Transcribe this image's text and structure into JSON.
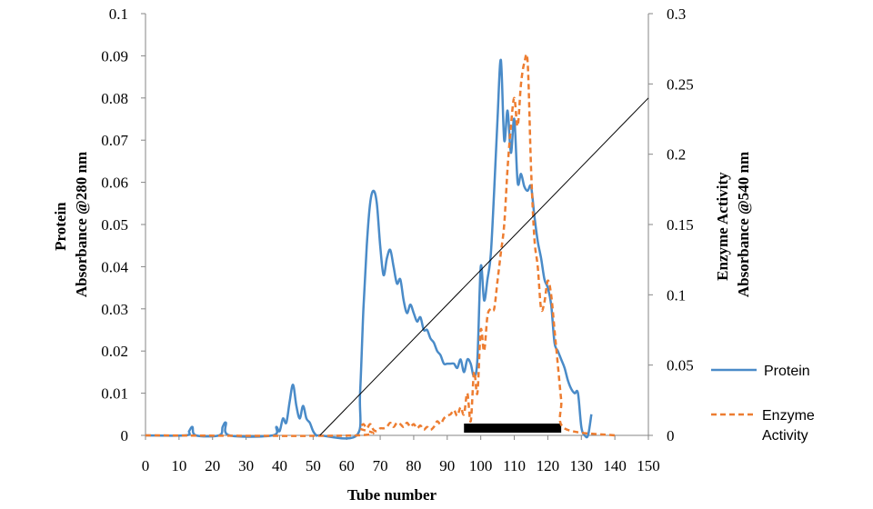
{
  "chart_data": {
    "type": "line",
    "title": "",
    "xlabel": "Tube number",
    "ylabel": [
      "Protein",
      "Absorbance @280 nm"
    ],
    "y2label": [
      "Enzyme Activity",
      "Absorbance @540 nm"
    ],
    "xlim": [
      0,
      150
    ],
    "ylim": [
      0,
      0.1
    ],
    "y2lim": [
      0,
      0.3
    ],
    "x_ticks": [
      0,
      10,
      20,
      30,
      40,
      50,
      60,
      70,
      80,
      90,
      100,
      110,
      120,
      130,
      140,
      150
    ],
    "y_ticks": [
      "0",
      "0.01",
      "0.02",
      "0.03",
      "0.04",
      "0.05",
      "0.06",
      "0.07",
      "0.08",
      "0.09",
      "0.1"
    ],
    "y2_ticks": [
      "0",
      "0.05",
      "0.1",
      "0.15",
      "0.2",
      "0.25",
      "0.3"
    ],
    "grid": false,
    "legend_position": "right",
    "series": [
      {
        "name": "Protein",
        "axis": "left",
        "color": "#4A8BC8",
        "style": "solid",
        "x": [
          0,
          12,
          13,
          14,
          15,
          22,
          23,
          24,
          25,
          38,
          39,
          40,
          41,
          42,
          43,
          44,
          45,
          46,
          47,
          48,
          49,
          50,
          51,
          52,
          63,
          64,
          65,
          66,
          67,
          68,
          69,
          70,
          71,
          72,
          73,
          74,
          75,
          76,
          77,
          78,
          79,
          80,
          81,
          82,
          83,
          84,
          85,
          86,
          87,
          88,
          89,
          90,
          91,
          92,
          93,
          94,
          95,
          96,
          97,
          98,
          99,
          100,
          101,
          102,
          103,
          104,
          105,
          106,
          107,
          108,
          109,
          110,
          111,
          112,
          113,
          114,
          115,
          116,
          117,
          118,
          119,
          120,
          121,
          122,
          123,
          124,
          125,
          126,
          127,
          128,
          129,
          130,
          131,
          132,
          133
        ],
        "y": [
          0,
          0,
          0.001,
          0.002,
          0,
          0,
          0.002,
          0.003,
          0,
          0,
          0.002,
          0.001,
          0.004,
          0.003,
          0.008,
          0.012,
          0.007,
          0.004,
          0.007,
          0.004,
          0.003,
          0.001,
          0,
          0,
          0,
          0.01,
          0.03,
          0.045,
          0.055,
          0.058,
          0.055,
          0.045,
          0.038,
          0.042,
          0.044,
          0.04,
          0.036,
          0.037,
          0.032,
          0.029,
          0.031,
          0.029,
          0.027,
          0.028,
          0.025,
          0.025,
          0.023,
          0.022,
          0.02,
          0.019,
          0.017,
          0.017,
          0.017,
          0.017,
          0.016,
          0.018,
          0.015,
          0.018,
          0.017,
          0.014,
          0.018,
          0.04,
          0.032,
          0.037,
          0.043,
          0.058,
          0.075,
          0.089,
          0.07,
          0.077,
          0.067,
          0.075,
          0.06,
          0.062,
          0.059,
          0.058,
          0.059,
          0.052,
          0.046,
          0.042,
          0.037,
          0.035,
          0.031,
          0.022,
          0.02,
          0.018,
          0.016,
          0.013,
          0.011,
          0.01,
          0.01,
          0.002,
          0,
          0,
          0.005
        ]
      },
      {
        "name": "Enzyme Activity",
        "axis": "right",
        "color": "#ED7D31",
        "style": "dashed",
        "x": [
          0,
          63,
          64,
          65,
          66,
          67,
          68,
          69,
          70,
          71,
          72,
          73,
          74,
          75,
          76,
          77,
          78,
          79,
          80,
          81,
          82,
          83,
          84,
          85,
          86,
          87,
          88,
          89,
          90,
          91,
          92,
          93,
          94,
          95,
          96,
          97,
          98,
          99,
          100,
          101,
          102,
          103,
          104,
          105,
          106,
          107,
          108,
          109,
          110,
          111,
          112,
          113,
          114,
          115,
          116,
          117,
          118,
          119,
          120,
          121,
          122,
          123,
          124,
          125,
          140
        ],
        "y": [
          0,
          0,
          0.005,
          0.008,
          0.005,
          0.008,
          0.004,
          0.003,
          0.005,
          0.005,
          0.006,
          0.009,
          0.006,
          0.009,
          0.008,
          0.006,
          0.009,
          0.006,
          0.008,
          0.005,
          0.007,
          0.004,
          0.006,
          0.004,
          0.006,
          0.01,
          0.008,
          0.012,
          0.014,
          0.015,
          0.018,
          0.014,
          0.02,
          0.015,
          0.03,
          0.01,
          0.045,
          0.03,
          0.075,
          0.06,
          0.085,
          0.09,
          0.09,
          0.11,
          0.13,
          0.15,
          0.19,
          0.22,
          0.24,
          0.22,
          0.25,
          0.265,
          0.265,
          0.19,
          0.14,
          0.12,
          0.09,
          0.095,
          0.11,
          0.1,
          0.075,
          0.05,
          0.025,
          0.005,
          0
        ]
      },
      {
        "name": "",
        "axis": "left",
        "color": "#000000",
        "style": "thin",
        "x": [
          52,
          150
        ],
        "y": [
          0,
          0.08
        ]
      }
    ],
    "annotations": [
      {
        "type": "bar",
        "x_start": 95,
        "x_end": 124,
        "y": 0.0015,
        "color": "#000000"
      }
    ]
  }
}
